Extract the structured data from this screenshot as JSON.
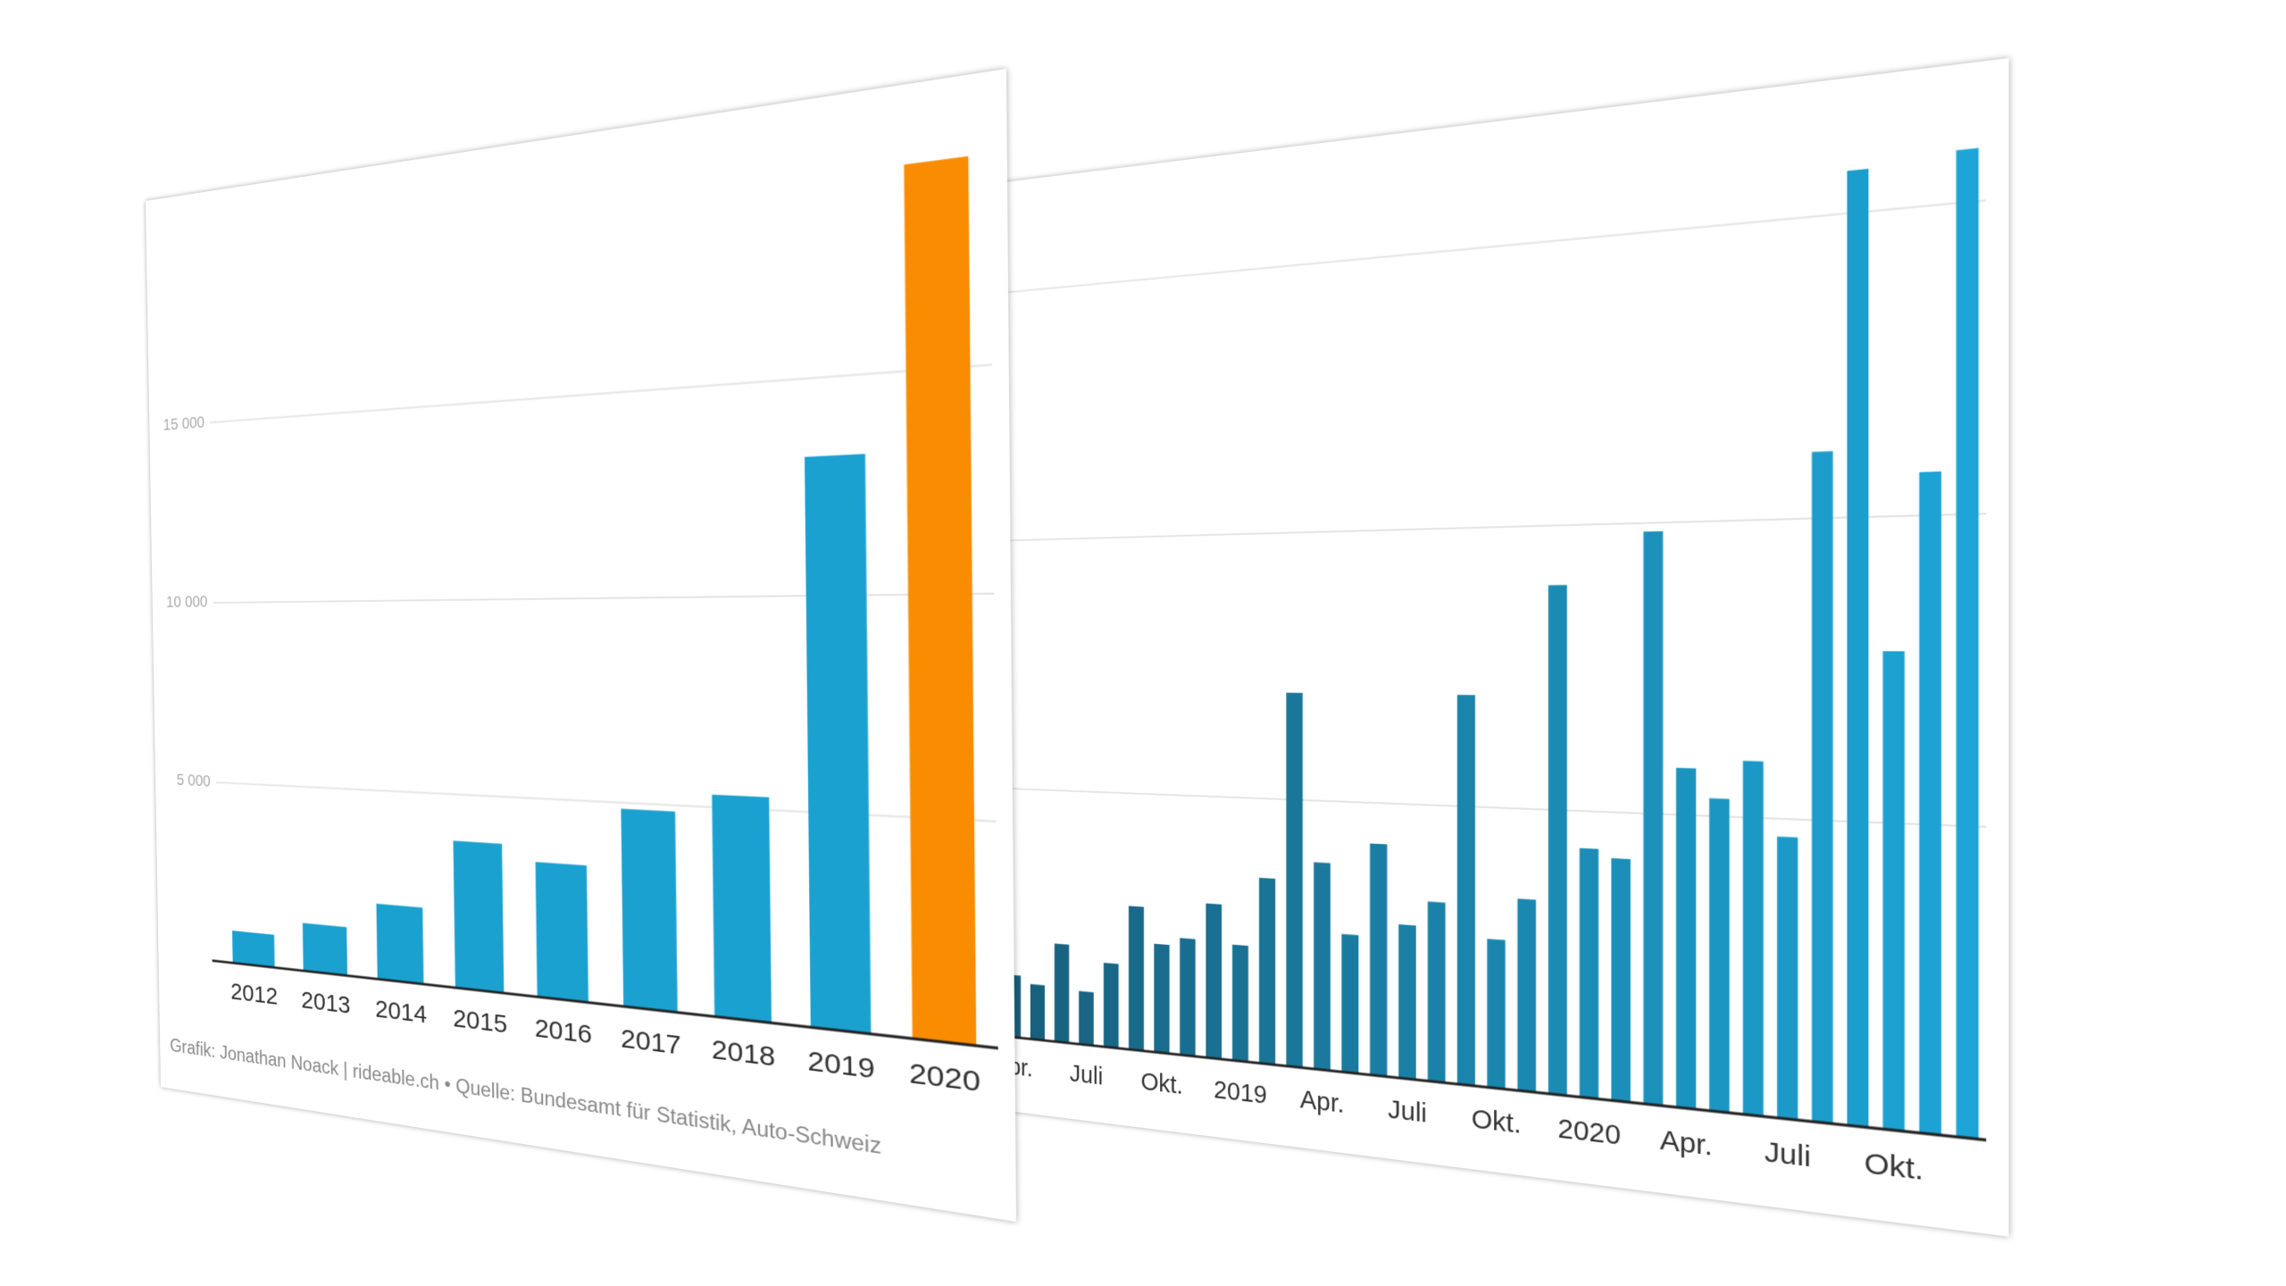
{
  "chart_data": [
    {
      "type": "bar",
      "categories": [
        "2012",
        "2013",
        "2014",
        "2015",
        "2016",
        "2017",
        "2018",
        "2019",
        "2020"
      ],
      "values": [
        900,
        1300,
        2000,
        3800,
        3400,
        4850,
        5300,
        13200,
        19600
      ],
      "colors": [
        "#1ba1d0",
        "#1ba1d0",
        "#1ba1d0",
        "#1ba1d0",
        "#1ba1d0",
        "#1ba1d0",
        "#1ba1d0",
        "#1ba1d0",
        "#f98c00"
      ],
      "ylim": [
        0,
        20000
      ],
      "yticks": [
        {
          "value": 5000,
          "label": "5 000"
        },
        {
          "value": 10000,
          "label": "10 000"
        },
        {
          "value": 15000,
          "label": "15 000"
        }
      ],
      "grid": true,
      "source": "Grafik: Jonathan Noack | rideable.ch • Quelle: Bundesamt für Statistik, Auto-Schweiz"
    },
    {
      "type": "bar",
      "categories": [
        null,
        null,
        "Apr.",
        null,
        null,
        "Juli",
        null,
        null,
        "Okt.",
        null,
        null,
        "2019",
        null,
        null,
        "Apr.",
        null,
        null,
        "Juli",
        null,
        null,
        "Okt.",
        null,
        null,
        "2020",
        null,
        null,
        "Apr.",
        null,
        null,
        "Juli",
        null,
        null,
        "Okt.",
        null,
        null
      ],
      "values": [
        390,
        510,
        250,
        220,
        390,
        210,
        330,
        560,
        420,
        450,
        590,
        440,
        700,
        1400,
        770,
        510,
        850,
        560,
        650,
        1400,
        530,
        680,
        1790,
        870,
        840,
        1970,
        1160,
        1060,
        1190,
        940,
        2220,
        3140,
        1560,
        2140,
        3170
      ],
      "color_range": [
        "#185a75",
        "#1ca5d6"
      ],
      "ylim": [
        0,
        3400
      ],
      "yticks": [
        1000,
        2000,
        3000
      ],
      "grid": true
    }
  ]
}
